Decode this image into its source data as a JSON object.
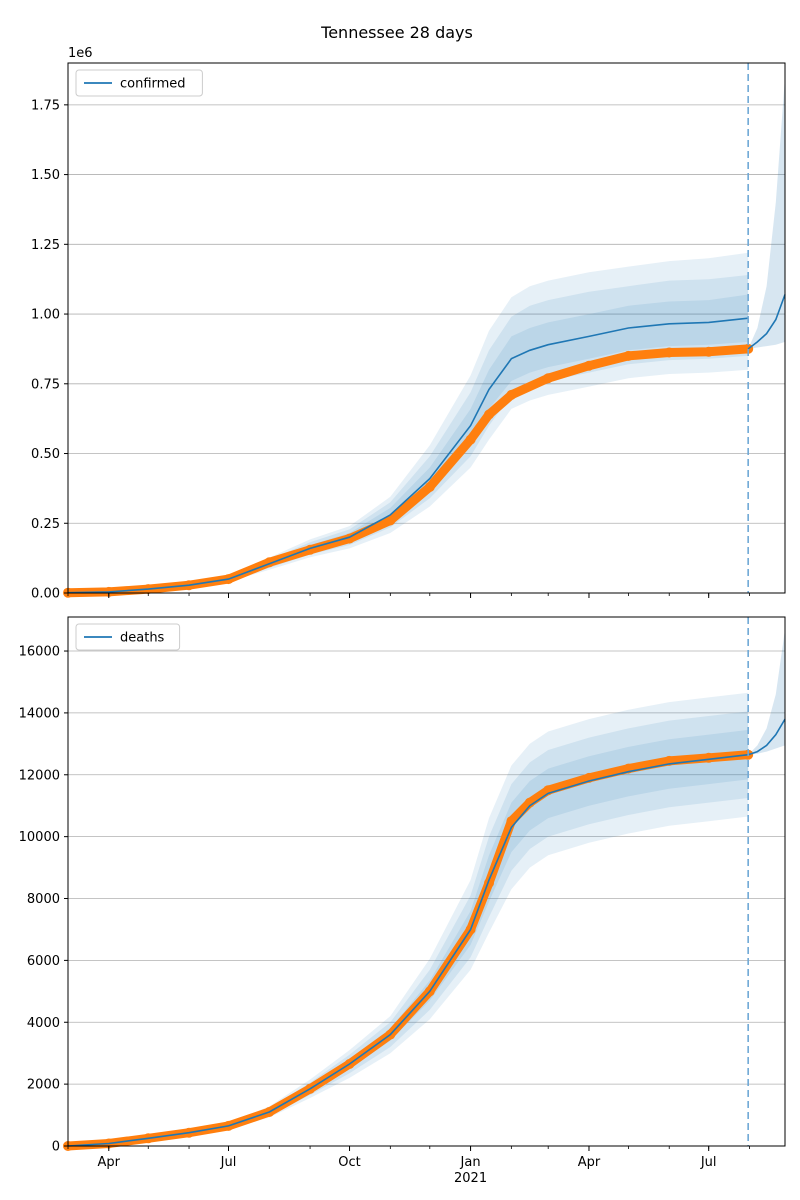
{
  "chart_data": {
    "title": "Tennessee 28 days",
    "x_axis": {
      "type": "date",
      "range": [
        "2020-03-01",
        "2021-08-28"
      ],
      "tick_labels": [
        "Apr",
        "Jul",
        "Oct",
        "Jan",
        "Apr",
        "Jul"
      ],
      "tick_dates": [
        "2020-04-01",
        "2020-07-01",
        "2020-10-01",
        "2021-01-01",
        "2021-04-01",
        "2021-07-01"
      ],
      "year_label": "2021",
      "year_label_date": "2021-01-01",
      "forecast_start": "2021-07-31"
    },
    "panels": [
      {
        "type": "line",
        "legend": "confirmed",
        "legend_position": "top-left",
        "multiplier_label": "1e6",
        "ylim": [
          0,
          1.9
        ],
        "yticks": [
          "0.00",
          "0.25",
          "0.50",
          "0.75",
          "1.00",
          "1.25",
          "1.50",
          "1.75"
        ],
        "ytick_values": [
          0,
          0.25,
          0.5,
          0.75,
          1.0,
          1.25,
          1.5,
          1.75
        ],
        "grid": "horizontal",
        "observed": {
          "dates": [
            "2020-03-01",
            "2020-04-01",
            "2020-05-01",
            "2020-06-01",
            "2020-07-01",
            "2020-08-01",
            "2020-09-01",
            "2020-10-01",
            "2020-11-01",
            "2020-12-01",
            "2021-01-01",
            "2021-01-15",
            "2021-02-01",
            "2021-03-01",
            "2021-04-01",
            "2021-05-01",
            "2021-06-01",
            "2021-07-01",
            "2021-07-31"
          ],
          "values": [
            0.001,
            0.004,
            0.014,
            0.028,
            0.05,
            0.11,
            0.155,
            0.195,
            0.26,
            0.38,
            0.55,
            0.64,
            0.71,
            0.77,
            0.815,
            0.85,
            0.862,
            0.865,
            0.875
          ]
        },
        "model": {
          "dates": [
            "2020-03-01",
            "2020-04-01",
            "2020-05-01",
            "2020-06-01",
            "2020-07-01",
            "2020-08-01",
            "2020-09-01",
            "2020-10-01",
            "2020-11-01",
            "2020-12-01",
            "2021-01-01",
            "2021-01-15",
            "2021-02-01",
            "2021-02-15",
            "2021-03-01",
            "2021-04-01",
            "2021-05-01",
            "2021-06-01",
            "2021-07-01",
            "2021-07-31"
          ],
          "values": [
            0.001,
            0.004,
            0.014,
            0.028,
            0.05,
            0.105,
            0.16,
            0.2,
            0.28,
            0.41,
            0.6,
            0.73,
            0.84,
            0.87,
            0.89,
            0.92,
            0.95,
            0.965,
            0.97,
            0.985
          ],
          "bands": [
            {
              "lower": [
                0.001,
                0.004,
                0.013,
                0.026,
                0.046,
                0.097,
                0.148,
                0.185,
                0.255,
                0.37,
                0.54,
                0.66,
                0.76,
                0.79,
                0.81,
                0.84,
                0.87,
                0.885,
                0.89,
                0.9
              ],
              "upper": [
                0.001,
                0.004,
                0.015,
                0.03,
                0.054,
                0.113,
                0.172,
                0.215,
                0.305,
                0.45,
                0.66,
                0.8,
                0.92,
                0.95,
                0.97,
                1.0,
                1.03,
                1.045,
                1.05,
                1.07
              ]
            },
            {
              "lower": [
                0.001,
                0.003,
                0.012,
                0.024,
                0.043,
                0.09,
                0.138,
                0.172,
                0.235,
                0.34,
                0.49,
                0.6,
                0.71,
                0.74,
                0.76,
                0.79,
                0.82,
                0.835,
                0.84,
                0.85
              ],
              "upper": [
                0.001,
                0.005,
                0.016,
                0.032,
                0.057,
                0.12,
                0.182,
                0.228,
                0.325,
                0.49,
                0.72,
                0.87,
                0.99,
                1.03,
                1.05,
                1.08,
                1.1,
                1.12,
                1.125,
                1.14
              ]
            },
            {
              "lower": [
                0.001,
                0.003,
                0.011,
                0.022,
                0.04,
                0.083,
                0.128,
                0.16,
                0.215,
                0.31,
                0.45,
                0.55,
                0.66,
                0.69,
                0.71,
                0.74,
                0.77,
                0.785,
                0.79,
                0.8
              ],
              "upper": [
                0.001,
                0.005,
                0.017,
                0.034,
                0.06,
                0.127,
                0.192,
                0.24,
                0.345,
                0.53,
                0.78,
                0.94,
                1.06,
                1.1,
                1.12,
                1.15,
                1.17,
                1.19,
                1.2,
                1.22
              ]
            }
          ]
        },
        "forecast": {
          "dates": [
            "2021-07-31",
            "2021-08-07",
            "2021-08-14",
            "2021-08-21",
            "2021-08-28"
          ],
          "values": [
            0.875,
            0.9,
            0.93,
            0.98,
            1.07
          ],
          "lower": [
            0.875,
            0.88,
            0.885,
            0.89,
            0.9
          ],
          "upper": [
            0.875,
            0.95,
            1.1,
            1.4,
            1.85
          ]
        }
      },
      {
        "type": "line",
        "legend": "deaths",
        "legend_position": "top-left",
        "multiplier_label": "",
        "ylim": [
          0,
          17100
        ],
        "yticks": [
          "0",
          "2000",
          "4000",
          "6000",
          "8000",
          "10000",
          "12000",
          "14000",
          "16000"
        ],
        "ytick_values": [
          0,
          2000,
          4000,
          6000,
          8000,
          10000,
          12000,
          14000,
          16000
        ],
        "grid": "horizontal",
        "observed": {
          "dates": [
            "2020-03-01",
            "2020-04-01",
            "2020-05-01",
            "2020-06-01",
            "2020-07-01",
            "2020-08-01",
            "2020-09-01",
            "2020-10-01",
            "2020-11-01",
            "2020-12-01",
            "2021-01-01",
            "2021-01-15",
            "2021-02-01",
            "2021-02-15",
            "2021-03-01",
            "2021-04-01",
            "2021-05-01",
            "2021-06-01",
            "2021-07-01",
            "2021-07-31"
          ],
          "values": [
            0,
            80,
            250,
            430,
            650,
            1100,
            1850,
            2650,
            3600,
            5000,
            7000,
            8500,
            10500,
            11100,
            11500,
            11900,
            12200,
            12450,
            12550,
            12650
          ]
        },
        "model": {
          "dates": [
            "2020-03-01",
            "2020-04-01",
            "2020-05-01",
            "2020-06-01",
            "2020-07-01",
            "2020-08-01",
            "2020-09-01",
            "2020-10-01",
            "2020-11-01",
            "2020-12-01",
            "2021-01-01",
            "2021-01-15",
            "2021-02-01",
            "2021-02-15",
            "2021-03-01",
            "2021-04-01",
            "2021-05-01",
            "2021-06-01",
            "2021-07-01",
            "2021-07-31"
          ],
          "values": [
            0,
            80,
            250,
            430,
            650,
            1100,
            1850,
            2650,
            3600,
            5000,
            7000,
            8600,
            10300,
            11000,
            11400,
            11800,
            12100,
            12350,
            12500,
            12650
          ],
          "bands": [
            {
              "lower": [
                0,
                75,
                235,
                405,
                615,
                1040,
                1750,
                2500,
                3400,
                4700,
                6500,
                7900,
                9500,
                10200,
                10600,
                11000,
                11300,
                11550,
                11700,
                11850
              ],
              "upper": [
                0,
                85,
                265,
                455,
                685,
                1160,
                1950,
                2800,
                3800,
                5350,
                7600,
                9400,
                11100,
                11800,
                12200,
                12600,
                12900,
                13150,
                13300,
                13450
              ]
            },
            {
              "lower": [
                0,
                70,
                220,
                380,
                580,
                980,
                1650,
                2350,
                3200,
                4400,
                6100,
                7400,
                8900,
                9600,
                10000,
                10400,
                10700,
                10950,
                11100,
                11250
              ],
              "upper": [
                0,
                90,
                280,
                480,
                720,
                1220,
                2050,
                2950,
                4000,
                5700,
                8100,
                10000,
                11700,
                12400,
                12800,
                13200,
                13500,
                13750,
                13900,
                14050
              ]
            },
            {
              "lower": [
                0,
                65,
                205,
                355,
                545,
                920,
                1550,
                2200,
                3000,
                4100,
                5700,
                6900,
                8300,
                9000,
                9400,
                9800,
                10100,
                10350,
                10500,
                10650
              ],
              "upper": [
                0,
                95,
                295,
                505,
                755,
                1280,
                2150,
                3100,
                4200,
                6050,
                8600,
                10600,
                12300,
                13000,
                13400,
                13800,
                14100,
                14350,
                14500,
                14650
              ]
            }
          ]
        },
        "forecast": {
          "dates": [
            "2021-07-31",
            "2021-08-07",
            "2021-08-14",
            "2021-08-21",
            "2021-08-28"
          ],
          "values": [
            12650,
            12750,
            12950,
            13300,
            13800
          ],
          "lower": [
            12650,
            12680,
            12750,
            12850,
            12950
          ],
          "upper": [
            12650,
            12950,
            13500,
            14600,
            16700
          ]
        }
      }
    ]
  }
}
